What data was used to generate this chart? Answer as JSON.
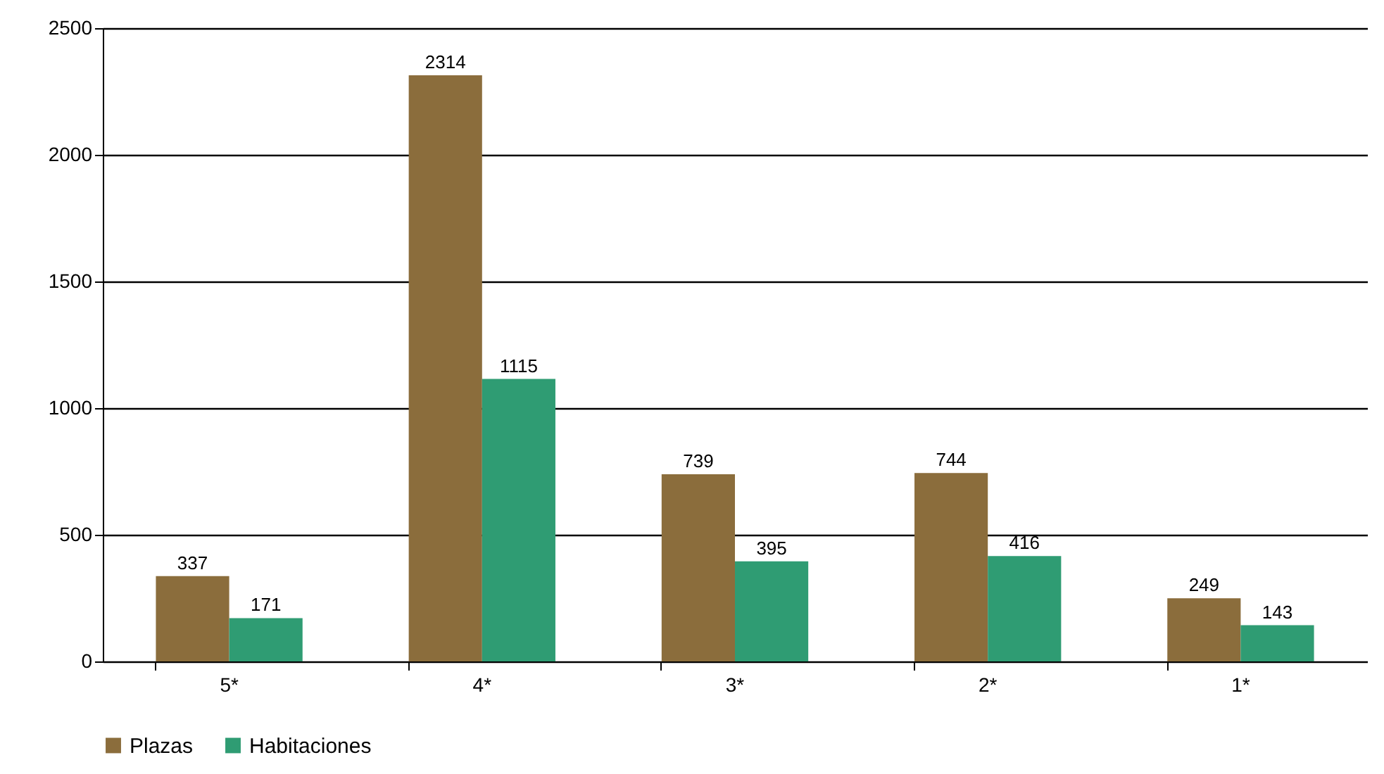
{
  "chart_data": {
    "type": "bar",
    "categories": [
      "5*",
      "4*",
      "3*",
      "2*",
      "1*"
    ],
    "series": [
      {
        "name": "Plazas",
        "color": "#8b6d3c",
        "values": [
          337,
          2314,
          739,
          744,
          249
        ]
      },
      {
        "name": "Habitaciones",
        "color": "#2f9c73",
        "values": [
          171,
          1115,
          395,
          416,
          143
        ]
      }
    ],
    "ylim": [
      0,
      2500
    ],
    "yticks": [
      0,
      500,
      1000,
      1500,
      2000,
      2500
    ],
    "grid": "y",
    "legend": "bottom",
    "data_labels": true
  }
}
